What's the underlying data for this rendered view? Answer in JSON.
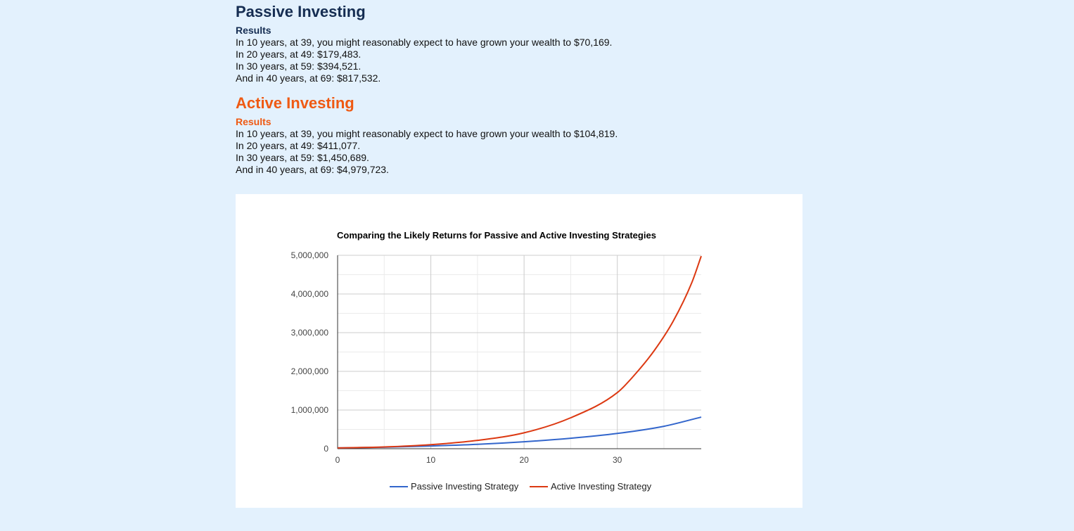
{
  "passive": {
    "heading": "Passive Investing",
    "results_label": "Results",
    "lines": [
      "In 10 years, at 39, you might reasonably expect to have grown your wealth to $70,169.",
      "In 20 years, at 49: $179,483.",
      "In 30 years, at 59: $394,521.",
      "And in 40 years, at 69: $817,532."
    ]
  },
  "active": {
    "heading": "Active Investing",
    "results_label": "Results",
    "lines": [
      "In 10 years, at 39, you might reasonably expect to have grown your wealth to $104,819.",
      "In 20 years, at 49: $411,077.",
      "In 30 years, at 59: $1,450,689.",
      "And in 40 years, at 69: $4,979,723."
    ]
  },
  "colors": {
    "passive_heading": "#152d52",
    "active_heading": "#ef5a13",
    "passive_series": "#3366cc",
    "active_series": "#dc3912",
    "page_background": "#e3f1fd"
  },
  "chart_data": {
    "type": "line",
    "title": "Comparing the Likely Returns for Passive and Active Investing Strategies",
    "xlabel": "",
    "ylabel": "",
    "xlim": [
      0,
      39
    ],
    "ylim": [
      0,
      5000000
    ],
    "x_ticks": [
      0,
      10,
      20,
      30
    ],
    "x_tick_labels": [
      "0",
      "10",
      "20",
      "30"
    ],
    "y_ticks": [
      0,
      1000000,
      2000000,
      3000000,
      4000000,
      5000000
    ],
    "y_tick_labels": [
      "0",
      "1,000,000",
      "2,000,000",
      "3,000,000",
      "4,000,000",
      "5,000,000"
    ],
    "grid": true,
    "legend_position": "bottom",
    "series": [
      {
        "name": "Passive Investing Strategy",
        "color": "#3366cc",
        "x": [
          0,
          5,
          10,
          15,
          20,
          25,
          30,
          35,
          39
        ],
        "y": [
          20000,
          38000,
          70169,
          113000,
          179483,
          270000,
          394521,
          580000,
          817532
        ]
      },
      {
        "name": "Active Investing Strategy",
        "color": "#dc3912",
        "x": [
          0,
          5,
          10,
          15,
          20,
          25,
          30,
          32,
          34,
          36,
          38,
          39
        ],
        "y": [
          20000,
          45000,
          104819,
          215000,
          411077,
          800000,
          1450689,
          1950000,
          2550000,
          3300000,
          4300000,
          4979723
        ]
      }
    ]
  }
}
